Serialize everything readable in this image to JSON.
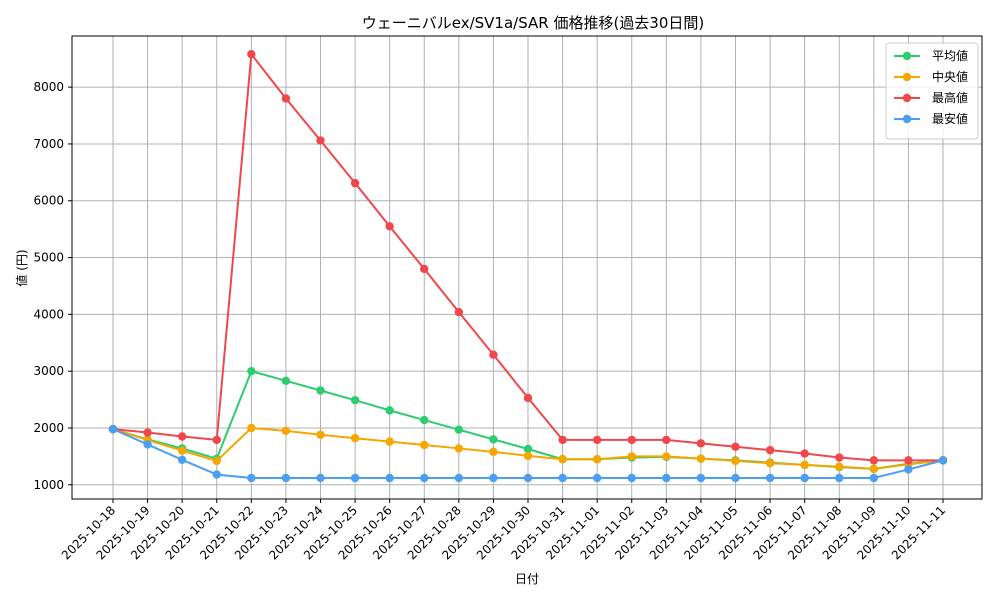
{
  "chart_data": {
    "type": "line",
    "title": "ウェーニバルex/SV1a/SAR 価格推移(過去30日間)",
    "xlabel": "日付",
    "ylabel": "値 (円)",
    "categories": [
      "2025-10-18",
      "2025-10-19",
      "2025-10-20",
      "2025-10-21",
      "2025-10-22",
      "2025-10-23",
      "2025-10-24",
      "2025-10-25",
      "2025-10-26",
      "2025-10-27",
      "2025-10-28",
      "2025-10-29",
      "2025-10-30",
      "2025-10-31",
      "2025-11-01",
      "2025-11-02",
      "2025-11-03",
      "2025-11-04",
      "2025-11-05",
      "2025-11-06",
      "2025-11-07",
      "2025-11-08",
      "2025-11-09",
      "2025-11-10",
      "2025-11-11"
    ],
    "ylim": [
      750,
      8900
    ],
    "yticks": [
      1000,
      2000,
      3000,
      4000,
      5000,
      6000,
      7000,
      8000
    ],
    "grid": true,
    "legend_position": "top-right",
    "series": [
      {
        "name": "平均値",
        "color": "#2ecc71",
        "values": [
          1980,
          1800,
          1640,
          1460,
          3000,
          2830,
          2660,
          2490,
          2310,
          2140,
          1970,
          1800,
          1630,
          1450,
          1450,
          1480,
          1490,
          1460,
          1430,
          1390,
          1350,
          1310,
          1280,
          1370,
          1430
        ]
      },
      {
        "name": "中央値",
        "color": "#f5a700",
        "values": [
          1980,
          1790,
          1600,
          1420,
          2000,
          1950,
          1880,
          1820,
          1760,
          1700,
          1640,
          1580,
          1510,
          1450,
          1450,
          1500,
          1500,
          1460,
          1420,
          1380,
          1350,
          1320,
          1280,
          1360,
          1430
        ]
      },
      {
        "name": "最高値",
        "color": "#f0474b",
        "values": [
          1980,
          1920,
          1850,
          1790,
          8580,
          7800,
          7060,
          6310,
          5550,
          4800,
          4040,
          3290,
          2530,
          1790,
          1790,
          1790,
          1790,
          1730,
          1670,
          1610,
          1550,
          1480,
          1430,
          1430,
          1430
        ]
      },
      {
        "name": "最安値",
        "color": "#4a9ff0",
        "values": [
          1980,
          1710,
          1440,
          1180,
          1120,
          1120,
          1120,
          1120,
          1120,
          1120,
          1120,
          1120,
          1120,
          1120,
          1120,
          1120,
          1120,
          1120,
          1120,
          1120,
          1120,
          1120,
          1120,
          1270,
          1430
        ]
      }
    ]
  }
}
